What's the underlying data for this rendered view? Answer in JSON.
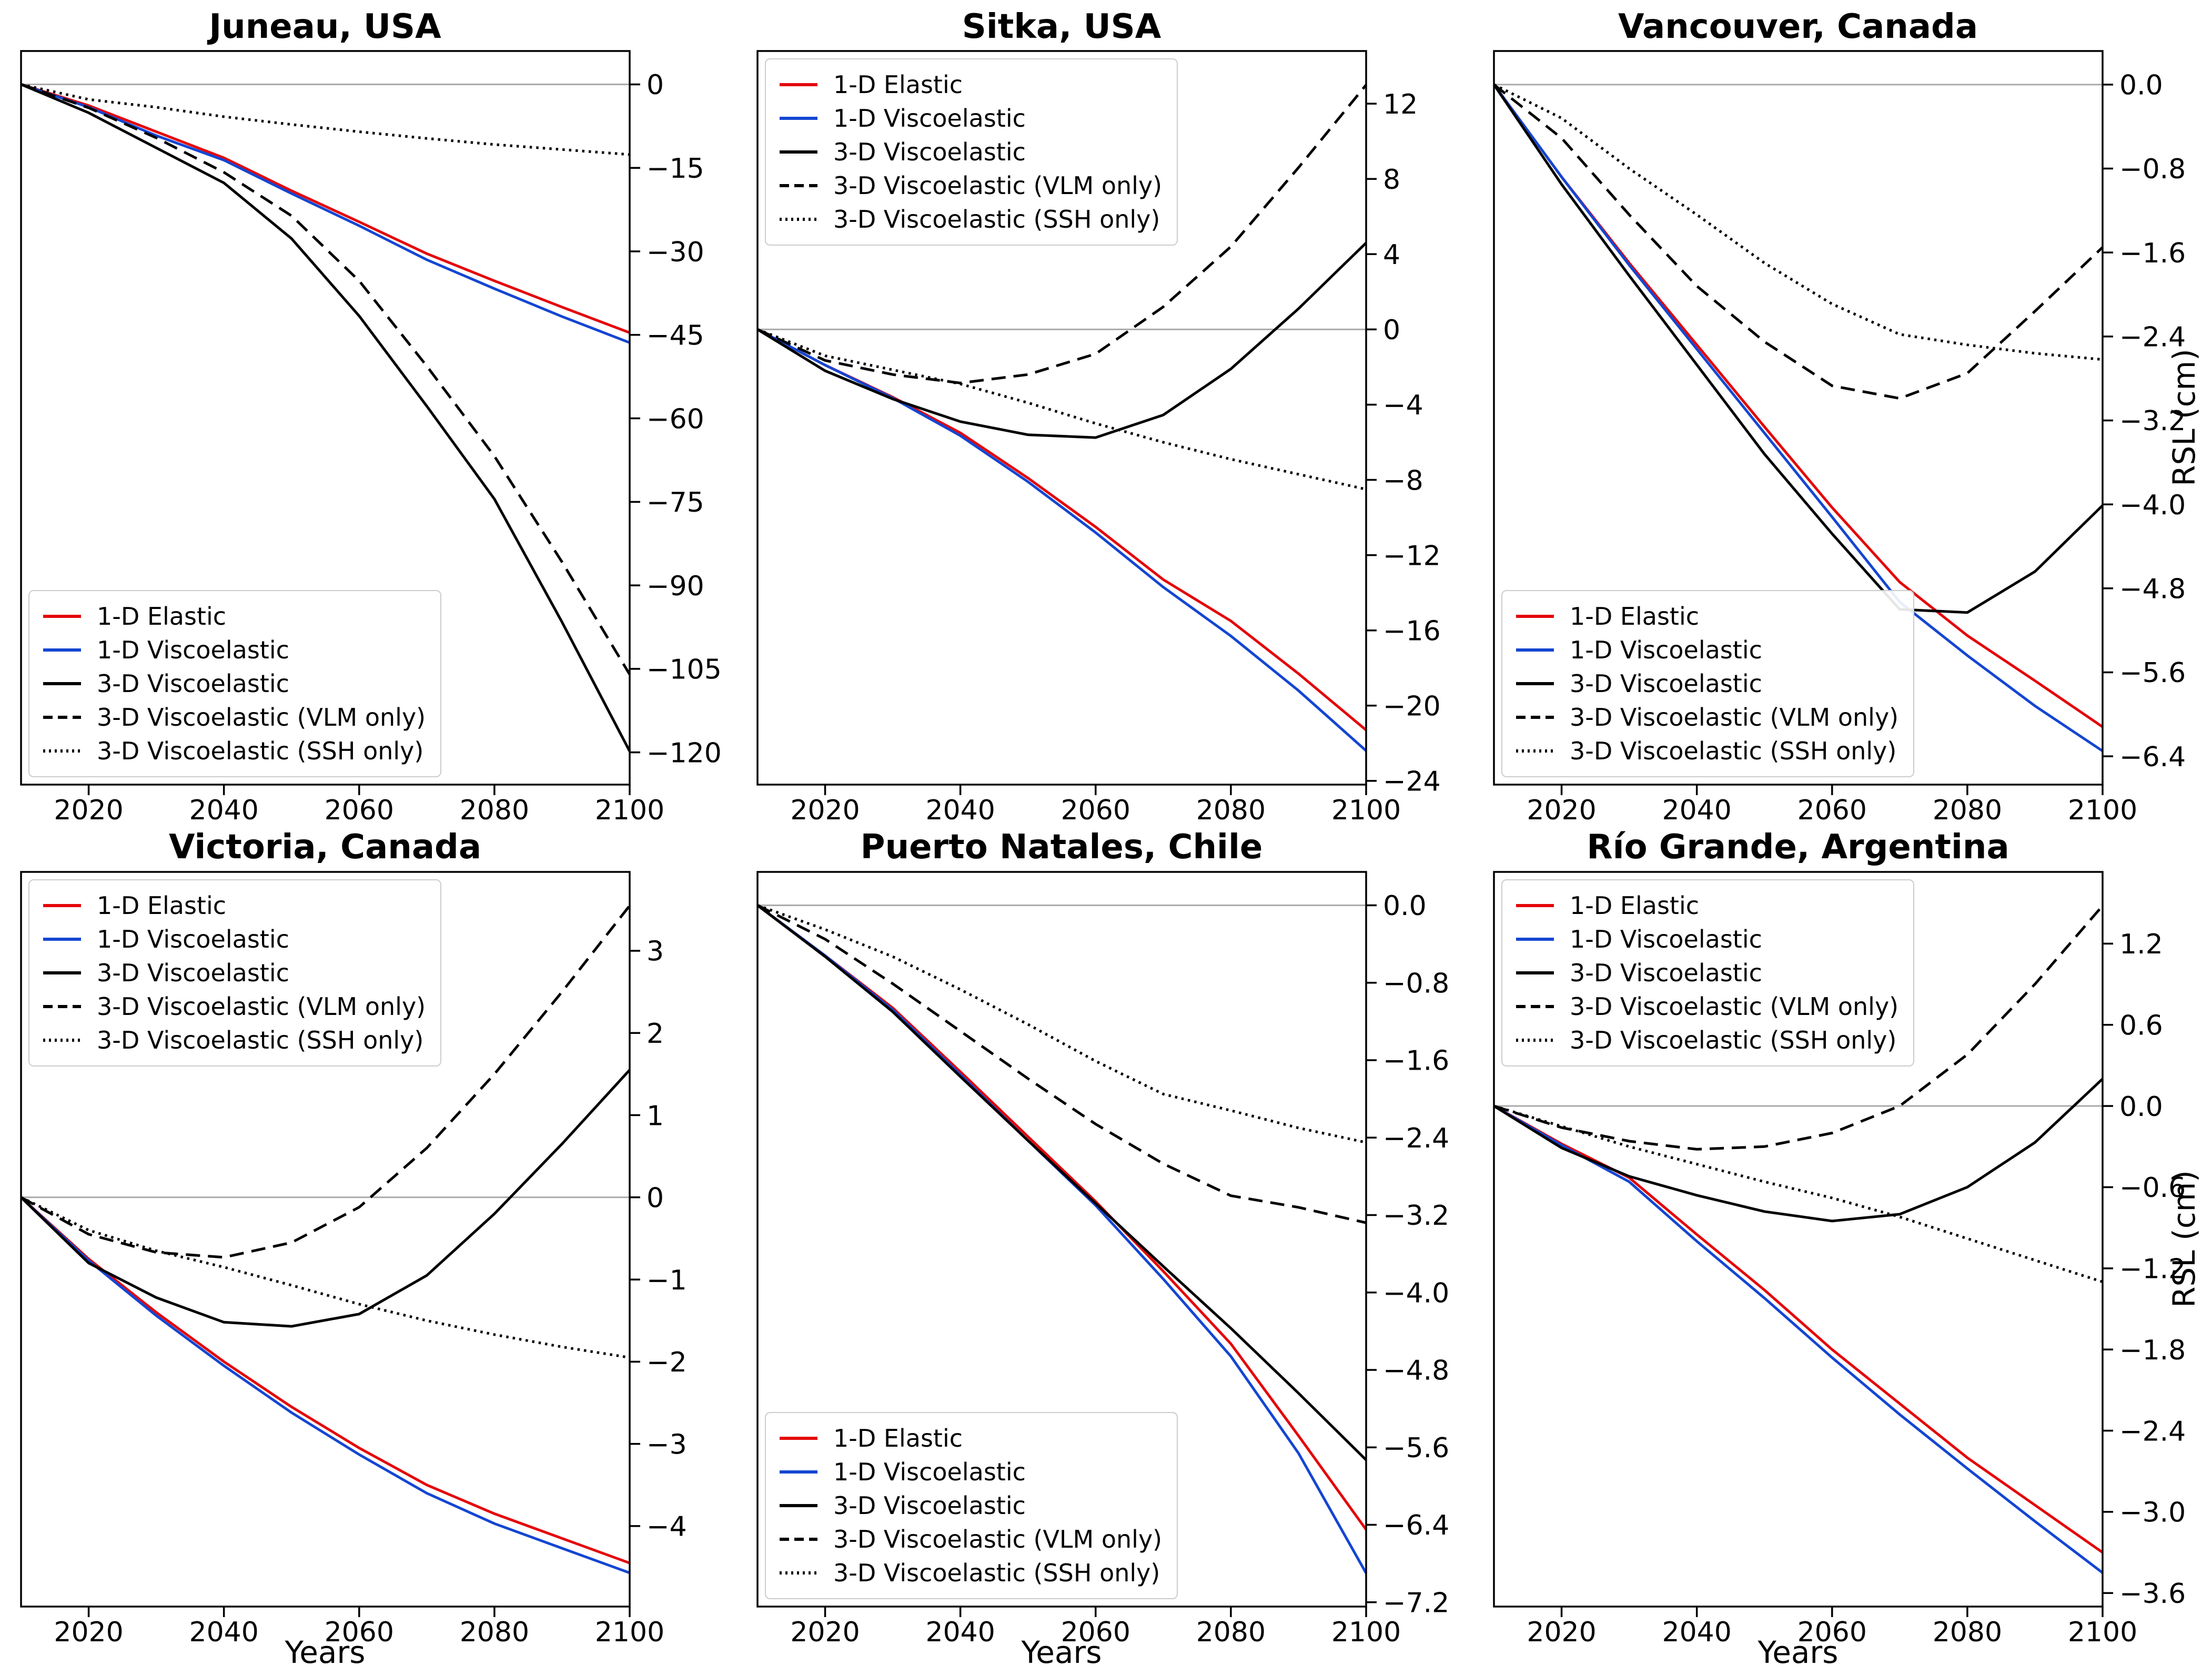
{
  "layout": {
    "xlabel": "Years",
    "ylabel": "RSL (cm)"
  },
  "legend": {
    "entries": [
      {
        "label": "1-D Elastic",
        "color": "#e4060a",
        "style": "solid"
      },
      {
        "label": "1-D Viscoelastic",
        "color": "#1446d2",
        "style": "solid"
      },
      {
        "label": "3-D Viscoelastic",
        "color": "#000000",
        "style": "solid"
      },
      {
        "label": "3-D Viscoelastic (VLM only)",
        "color": "#000000",
        "style": "dashed"
      },
      {
        "label": "3-D Viscoelastic (SSH only)",
        "color": "#000000",
        "style": "dotted"
      }
    ]
  },
  "chart_data": [
    {
      "type": "line",
      "title": "Juneau, USA",
      "xlabel": "",
      "ylabel": "",
      "legend_position": "bottom-left",
      "grid": false,
      "zero_line": true,
      "x": [
        2010,
        2020,
        2030,
        2040,
        2050,
        2060,
        2070,
        2080,
        2090,
        2100
      ],
      "xlim": [
        2010,
        2100
      ],
      "ylim": [
        -125.8,
        6.0
      ],
      "x_ticks": [
        2020,
        2040,
        2060,
        2080,
        2100
      ],
      "y_ticks": [
        {
          "v": 0,
          "label": "0"
        },
        {
          "v": -15,
          "label": "−15"
        },
        {
          "v": -30,
          "label": "−30"
        },
        {
          "v": -45,
          "label": "−45"
        },
        {
          "v": -60,
          "label": "−60"
        },
        {
          "v": -75,
          "label": "−75"
        },
        {
          "v": -90,
          "label": "−90"
        },
        {
          "v": -105,
          "label": "−105"
        },
        {
          "v": -120,
          "label": "−120"
        }
      ],
      "series": [
        {
          "name": "1-D Elastic",
          "values": [
            0,
            -3.8,
            -8.5,
            -13.2,
            -19.1,
            -24.7,
            -30.4,
            -35.3,
            -40.0,
            -44.6
          ]
        },
        {
          "name": "1-D Viscoelastic",
          "values": [
            0,
            -4.1,
            -9.2,
            -13.6,
            -19.6,
            -25.4,
            -31.5,
            -36.7,
            -41.7,
            -46.4
          ]
        },
        {
          "name": "3-D Viscoelastic",
          "values": [
            0,
            -5.1,
            -11.4,
            -17.7,
            -27.7,
            -41.6,
            -57.8,
            -74.5,
            -96.6,
            -119.8
          ]
        },
        {
          "name": "3-D Viscoelastic (VLM only)",
          "values": [
            0,
            -4.2,
            -9.6,
            -15.8,
            -23.6,
            -35.3,
            -50.6,
            -66.8,
            -85.8,
            -106.0
          ]
        },
        {
          "name": "3-D Viscoelastic (SSH only)",
          "values": [
            0,
            -2.7,
            -4.1,
            -5.8,
            -7.2,
            -8.5,
            -9.7,
            -10.8,
            -11.7,
            -12.6
          ]
        }
      ]
    },
    {
      "type": "line",
      "title": "Sitka, USA",
      "xlabel": "",
      "ylabel": "",
      "legend_position": "top-left",
      "grid": false,
      "zero_line": true,
      "x": [
        2010,
        2020,
        2030,
        2040,
        2050,
        2060,
        2070,
        2080,
        2090,
        2100
      ],
      "xlim": [
        2010,
        2100
      ],
      "ylim": [
        -24.2,
        14.8
      ],
      "x_ticks": [
        2020,
        2040,
        2060,
        2080,
        2100
      ],
      "y_ticks": [
        {
          "v": 12,
          "label": "12"
        },
        {
          "v": 8,
          "label": "8"
        },
        {
          "v": 4,
          "label": "4"
        },
        {
          "v": 0,
          "label": "0"
        },
        {
          "v": -4,
          "label": "−4"
        },
        {
          "v": -8,
          "label": "−8"
        },
        {
          "v": -12,
          "label": "−12"
        },
        {
          "v": -16,
          "label": "−16"
        },
        {
          "v": -20,
          "label": "−20"
        },
        {
          "v": -24,
          "label": "−24"
        }
      ],
      "series": [
        {
          "name": "1-D Elastic",
          "values": [
            0,
            -1.9,
            -3.6,
            -5.5,
            -7.9,
            -10.5,
            -13.3,
            -15.5,
            -18.3,
            -21.3
          ]
        },
        {
          "name": "1-D Viscoelastic",
          "values": [
            0,
            -1.9,
            -3.65,
            -5.65,
            -8.1,
            -10.8,
            -13.7,
            -16.3,
            -19.2,
            -22.4
          ]
        },
        {
          "name": "3-D Viscoelastic",
          "values": [
            0,
            -2.2,
            -3.7,
            -4.9,
            -5.6,
            -5.75,
            -4.55,
            -2.1,
            1.1,
            4.6
          ]
        },
        {
          "name": "3-D Viscoelastic (VLM only)",
          "values": [
            0,
            -1.65,
            -2.4,
            -2.85,
            -2.4,
            -1.3,
            1.2,
            4.4,
            8.6,
            13.0
          ]
        },
        {
          "name": "3-D Viscoelastic (SSH only)",
          "values": [
            0,
            -1.4,
            -2.15,
            -2.9,
            -3.9,
            -5.0,
            -6.0,
            -6.9,
            -7.7,
            -8.5
          ]
        }
      ]
    },
    {
      "type": "line",
      "title": "Vancouver, Canada",
      "xlabel": "",
      "ylabel": "RSL (cm)",
      "legend_position": "bottom-left",
      "grid": false,
      "zero_line": true,
      "x": [
        2010,
        2020,
        2030,
        2040,
        2050,
        2060,
        2070,
        2080,
        2090,
        2100
      ],
      "xlim": [
        2010,
        2100
      ],
      "ylim": [
        -6.67,
        0.32
      ],
      "x_ticks": [
        2020,
        2040,
        2060,
        2080,
        2100
      ],
      "y_ticks": [
        {
          "v": 0,
          "label": "0.0"
        },
        {
          "v": -0.8,
          "label": "−0.8"
        },
        {
          "v": -1.6,
          "label": "−1.6"
        },
        {
          "v": -2.4,
          "label": "−2.4"
        },
        {
          "v": -3.2,
          "label": "−3.2"
        },
        {
          "v": -4.0,
          "label": "−4.0"
        },
        {
          "v": -4.8,
          "label": "−4.8"
        },
        {
          "v": -5.6,
          "label": "−5.6"
        },
        {
          "v": -6.4,
          "label": "−6.4"
        }
      ],
      "series": [
        {
          "name": "1-D Elastic",
          "values": [
            0,
            -0.88,
            -1.7,
            -2.48,
            -3.26,
            -4.03,
            -4.74,
            -5.25,
            -5.68,
            -6.12
          ]
        },
        {
          "name": "1-D Viscoelastic",
          "values": [
            0,
            -0.88,
            -1.72,
            -2.52,
            -3.32,
            -4.12,
            -4.93,
            -5.44,
            -5.92,
            -6.35
          ]
        },
        {
          "name": "3-D Viscoelastic",
          "values": [
            0,
            -0.95,
            -1.82,
            -2.67,
            -3.52,
            -4.28,
            -5.0,
            -5.03,
            -4.64,
            -4.01
          ]
        },
        {
          "name": "3-D Viscoelastic (VLM only)",
          "values": [
            0,
            -0.51,
            -1.24,
            -1.92,
            -2.45,
            -2.87,
            -2.99,
            -2.75,
            -2.16,
            -1.55
          ]
        },
        {
          "name": "3-D Viscoelastic (SSH only)",
          "values": [
            0,
            -0.32,
            -0.8,
            -1.24,
            -1.7,
            -2.09,
            -2.38,
            -2.48,
            -2.56,
            -2.62
          ]
        }
      ]
    },
    {
      "type": "line",
      "title": "Victoria, Canada",
      "xlabel": "Years",
      "ylabel": "",
      "legend_position": "top-left",
      "grid": false,
      "zero_line": true,
      "x": [
        2010,
        2020,
        2030,
        2040,
        2050,
        2060,
        2070,
        2080,
        2090,
        2100
      ],
      "xlim": [
        2010,
        2100
      ],
      "ylim": [
        -4.98,
        3.96
      ],
      "x_ticks": [
        2020,
        2040,
        2060,
        2080,
        2100
      ],
      "y_ticks": [
        {
          "v": 3,
          "label": "3"
        },
        {
          "v": 2,
          "label": "2"
        },
        {
          "v": 1,
          "label": "1"
        },
        {
          "v": 0,
          "label": "0"
        },
        {
          "v": -1,
          "label": "−1"
        },
        {
          "v": -2,
          "label": "−2"
        },
        {
          "v": -3,
          "label": "−3"
        },
        {
          "v": -4,
          "label": "−4"
        }
      ],
      "series": [
        {
          "name": "1-D Elastic",
          "values": [
            0,
            -0.75,
            -1.4,
            -2.0,
            -2.55,
            -3.05,
            -3.5,
            -3.85,
            -4.15,
            -4.45
          ]
        },
        {
          "name": "1-D Viscoelastic",
          "values": [
            0,
            -0.77,
            -1.44,
            -2.05,
            -2.62,
            -3.13,
            -3.6,
            -3.97,
            -4.27,
            -4.57
          ]
        },
        {
          "name": "3-D Viscoelastic",
          "values": [
            0,
            -0.8,
            -1.22,
            -1.52,
            -1.57,
            -1.42,
            -0.95,
            -0.2,
            0.65,
            1.55
          ]
        },
        {
          "name": "3-D Viscoelastic (VLM only)",
          "values": [
            0,
            -0.45,
            -0.67,
            -0.73,
            -0.55,
            -0.12,
            0.6,
            1.5,
            2.5,
            3.55
          ]
        },
        {
          "name": "3-D Viscoelastic (SSH only)",
          "values": [
            0,
            -0.4,
            -0.65,
            -0.85,
            -1.07,
            -1.3,
            -1.5,
            -1.67,
            -1.82,
            -1.95
          ]
        }
      ]
    },
    {
      "type": "line",
      "title": "Puerto Natales, Chile",
      "xlabel": "Years",
      "ylabel": "",
      "legend_position": "bottom-left",
      "grid": false,
      "zero_line": true,
      "x": [
        2010,
        2020,
        2030,
        2040,
        2050,
        2060,
        2070,
        2080,
        2090,
        2100
      ],
      "xlim": [
        2010,
        2100
      ],
      "ylim": [
        -7.245,
        0.345
      ],
      "x_ticks": [
        2020,
        2040,
        2060,
        2080,
        2100
      ],
      "y_ticks": [
        {
          "v": 0,
          "label": "0.0"
        },
        {
          "v": -0.8,
          "label": "−0.8"
        },
        {
          "v": -1.6,
          "label": "−1.6"
        },
        {
          "v": -2.4,
          "label": "−2.4"
        },
        {
          "v": -3.2,
          "label": "−3.2"
        },
        {
          "v": -4.0,
          "label": "−4.0"
        },
        {
          "v": -4.8,
          "label": "−4.8"
        },
        {
          "v": -5.6,
          "label": "−5.6"
        },
        {
          "v": -6.4,
          "label": "−6.4"
        },
        {
          "v": -7.2,
          "label": "−7.2"
        }
      ],
      "series": [
        {
          "name": "1-D Elastic",
          "values": [
            0,
            -0.52,
            -1.06,
            -1.72,
            -2.39,
            -3.06,
            -3.78,
            -4.53,
            -5.48,
            -6.45
          ]
        },
        {
          "name": "1-D Viscoelastic",
          "values": [
            0,
            -0.52,
            -1.08,
            -1.75,
            -2.43,
            -3.1,
            -3.86,
            -4.66,
            -5.66,
            -6.9
          ]
        },
        {
          "name": "3-D Viscoelastic",
          "values": [
            0,
            -0.53,
            -1.1,
            -1.77,
            -2.43,
            -3.08,
            -3.73,
            -4.37,
            -5.04,
            -5.73
          ]
        },
        {
          "name": "3-D Viscoelastic (VLM only)",
          "values": [
            0,
            -0.35,
            -0.81,
            -1.3,
            -1.79,
            -2.26,
            -2.67,
            -3.0,
            -3.12,
            -3.28
          ]
        },
        {
          "name": "3-D Viscoelastic (SSH only)",
          "values": [
            0,
            -0.25,
            -0.53,
            -0.87,
            -1.23,
            -1.61,
            -1.95,
            -2.12,
            -2.3,
            -2.45
          ]
        }
      ]
    },
    {
      "type": "line",
      "title": "Río Grande, Argentina",
      "xlabel": "Years",
      "ylabel": "RSL (cm)",
      "legend_position": "top-left",
      "grid": false,
      "zero_line": true,
      "x": [
        2010,
        2020,
        2030,
        2040,
        2050,
        2060,
        2070,
        2080,
        2090,
        2100
      ],
      "xlim": [
        2010,
        2100
      ],
      "ylim": [
        -3.7,
        1.73
      ],
      "x_ticks": [
        2020,
        2040,
        2060,
        2080,
        2100
      ],
      "y_ticks": [
        {
          "v": 1.2,
          "label": "1.2"
        },
        {
          "v": 0.6,
          "label": "0.6"
        },
        {
          "v": 0,
          "label": "0.0"
        },
        {
          "v": -0.6,
          "label": "−0.6"
        },
        {
          "v": -1.2,
          "label": "−1.2"
        },
        {
          "v": -1.8,
          "label": "−1.8"
        },
        {
          "v": -2.4,
          "label": "−2.4"
        },
        {
          "v": -3.0,
          "label": "−3.0"
        },
        {
          "v": -3.6,
          "label": "−3.6"
        }
      ],
      "series": [
        {
          "name": "1-D Elastic",
          "values": [
            0,
            -0.28,
            -0.53,
            -0.95,
            -1.36,
            -1.8,
            -2.2,
            -2.6,
            -2.95,
            -3.3
          ]
        },
        {
          "name": "1-D Viscoelastic",
          "values": [
            0,
            -0.29,
            -0.56,
            -1.0,
            -1.42,
            -1.86,
            -2.28,
            -2.68,
            -3.07,
            -3.45
          ]
        },
        {
          "name": "3-D Viscoelastic",
          "values": [
            0,
            -0.31,
            -0.52,
            -0.66,
            -0.78,
            -0.85,
            -0.8,
            -0.6,
            -0.27,
            0.2
          ]
        },
        {
          "name": "3-D Viscoelastic (VLM only)",
          "values": [
            0,
            -0.16,
            -0.26,
            -0.32,
            -0.3,
            -0.2,
            0.0,
            0.38,
            0.9,
            1.48
          ]
        },
        {
          "name": "3-D Viscoelastic (SSH only)",
          "values": [
            0,
            -0.15,
            -0.3,
            -0.43,
            -0.56,
            -0.68,
            -0.82,
            -0.98,
            -1.14,
            -1.3
          ]
        }
      ]
    }
  ]
}
